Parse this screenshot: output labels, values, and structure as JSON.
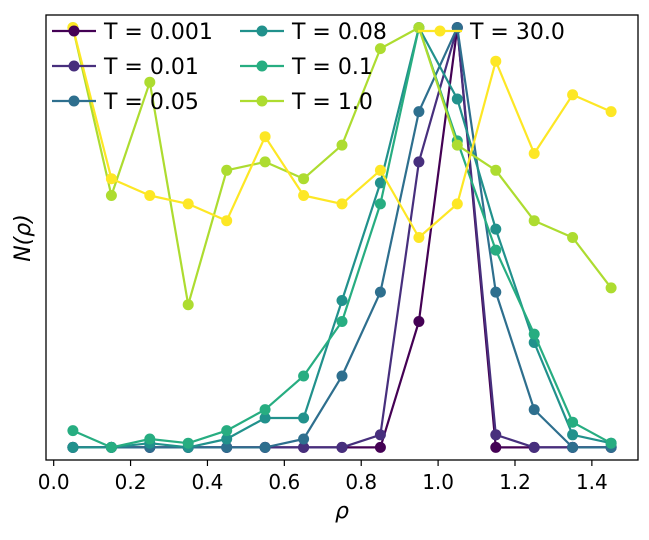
{
  "chart_data": {
    "type": "line",
    "title": "",
    "xlabel": "ρ",
    "ylabel": "N(ρ)",
    "xlim": [
      -0.02,
      1.52
    ],
    "ylim": [
      -0.03,
      1.03
    ],
    "xticks": [
      0.0,
      0.2,
      0.4,
      0.6,
      0.8,
      1.0,
      1.2,
      1.4
    ],
    "xtick_labels": [
      "0.0",
      "0.2",
      "0.4",
      "0.6",
      "0.8",
      "1.0",
      "1.2",
      "1.4"
    ],
    "y_ticks_shown": false,
    "grid": false,
    "legend_position": "top-left",
    "legend_columns": 3,
    "x": [
      0.05,
      0.15,
      0.25,
      0.35,
      0.45,
      0.55,
      0.65,
      0.75,
      0.85,
      0.95,
      1.05,
      1.15,
      1.25,
      1.35,
      1.45
    ],
    "series": [
      {
        "name": "T = 0.001",
        "color": "#440154",
        "values": [
          0.0,
          0.0,
          0.0,
          0.0,
          0.0,
          0.0,
          0.0,
          0.0,
          0.0,
          0.3,
          1.0,
          0.0,
          0.0,
          0.0,
          0.0
        ]
      },
      {
        "name": "T = 0.01",
        "color": "#472f7d",
        "values": [
          0.0,
          0.0,
          0.0,
          0.0,
          0.0,
          0.0,
          0.0,
          0.0,
          0.03,
          0.68,
          1.0,
          0.03,
          0.0,
          0.0,
          0.0
        ]
      },
      {
        "name": "T = 0.05",
        "color": "#2e6f8e",
        "values": [
          0.0,
          0.0,
          0.0,
          0.0,
          0.0,
          0.0,
          0.02,
          0.17,
          0.37,
          0.8,
          1.0,
          0.37,
          0.09,
          0.0,
          0.0
        ]
      },
      {
        "name": "T = 0.08",
        "color": "#21918c",
        "values": [
          0.0,
          0.0,
          0.01,
          0.0,
          0.02,
          0.07,
          0.07,
          0.35,
          0.63,
          1.0,
          0.83,
          0.52,
          0.25,
          0.03,
          0.01
        ]
      },
      {
        "name": "T = 0.1",
        "color": "#27ad81",
        "values": [
          0.04,
          0.0,
          0.02,
          0.01,
          0.04,
          0.09,
          0.17,
          0.3,
          0.58,
          1.0,
          0.73,
          0.47,
          0.27,
          0.06,
          0.01
        ]
      },
      {
        "name": "T = 1.0",
        "color": "#addc30",
        "values": [
          1.0,
          0.6,
          0.87,
          0.34,
          0.66,
          0.68,
          0.64,
          0.72,
          0.95,
          1.0,
          0.72,
          0.66,
          0.54,
          0.5,
          0.38
        ]
      },
      {
        "name": "T = 30.0",
        "color": "#fde725",
        "values": [
          1.0,
          0.64,
          0.6,
          0.58,
          0.54,
          0.74,
          0.6,
          0.58,
          0.66,
          0.5,
          0.58,
          0.92,
          0.7,
          0.84,
          0.8
        ]
      }
    ]
  }
}
